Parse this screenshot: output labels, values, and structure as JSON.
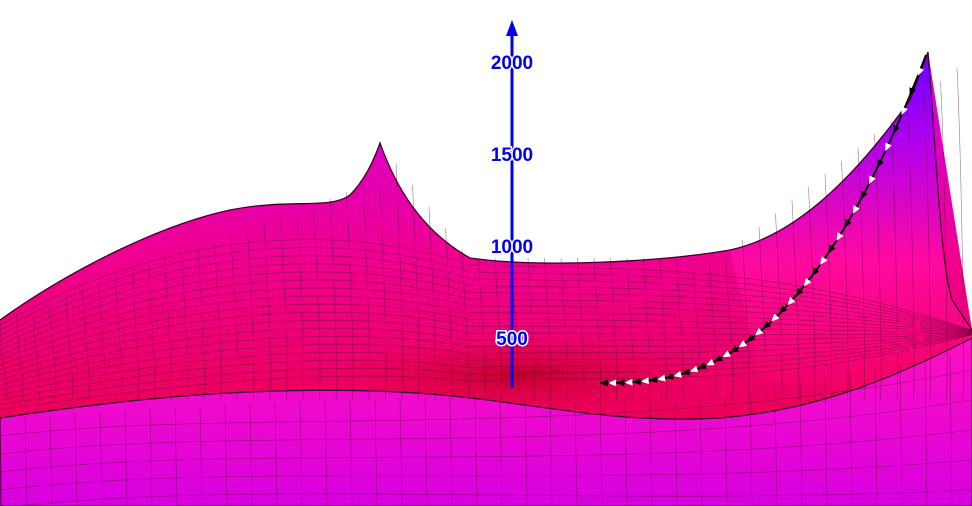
{
  "chart_data": {
    "type": "surface",
    "title": "",
    "grid": true,
    "z_axis": {
      "ylim": [
        0,
        2100
      ],
      "ticks": [
        500,
        1000,
        1500,
        2000
      ],
      "tick_labels": [
        "500",
        "1000",
        "1500",
        "2000"
      ],
      "color": "#0000ee"
    },
    "surface_colors": {
      "low": "#e8003a",
      "mid": "#ff1a90",
      "high": "#c000ff",
      "peak": "#6a00ff"
    },
    "descent_path": {
      "start": "right peak",
      "end": "valley floor",
      "colors": [
        "#000000",
        "#ffffff"
      ]
    }
  }
}
